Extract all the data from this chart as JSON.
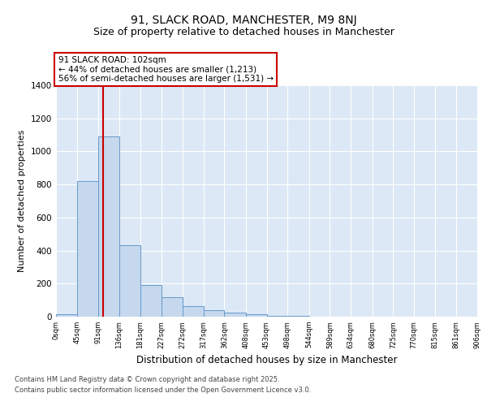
{
  "title": "91, SLACK ROAD, MANCHESTER, M9 8NJ",
  "subtitle": "Size of property relative to detached houses in Manchester",
  "xlabel": "Distribution of detached houses by size in Manchester",
  "ylabel": "Number of detached properties",
  "bar_values": [
    15,
    820,
    1090,
    430,
    190,
    120,
    65,
    40,
    25,
    15,
    5,
    3,
    2,
    1,
    0,
    0,
    0,
    0,
    0,
    0
  ],
  "bin_edges": [
    0,
    45,
    91,
    136,
    181,
    227,
    272,
    317,
    362,
    408,
    453,
    498,
    544,
    589,
    634,
    680,
    725,
    770,
    815,
    861,
    906
  ],
  "tick_labels": [
    "0sqm",
    "45sqm",
    "91sqm",
    "136sqm",
    "181sqm",
    "227sqm",
    "272sqm",
    "317sqm",
    "362sqm",
    "408sqm",
    "453sqm",
    "498sqm",
    "544sqm",
    "589sqm",
    "634sqm",
    "680sqm",
    "725sqm",
    "770sqm",
    "815sqm",
    "861sqm",
    "906sqm"
  ],
  "property_size": 102,
  "property_line_color": "#cc0000",
  "bar_color": "#c5d8ed",
  "bar_edge_color": "#6699cc",
  "annotation_text": "91 SLACK ROAD: 102sqm\n← 44% of detached houses are smaller (1,213)\n56% of semi-detached houses are larger (1,531) →",
  "annotation_box_color": "#ffffff",
  "annotation_box_edge_color": "#cc0000",
  "ylim": [
    0,
    1400
  ],
  "yticks": [
    0,
    200,
    400,
    600,
    800,
    1000,
    1200,
    1400
  ],
  "background_color": "#dce8f5",
  "grid_color": "#ffffff",
  "footer_line1": "Contains HM Land Registry data © Crown copyright and database right 2025.",
  "footer_line2": "Contains public sector information licensed under the Open Government Licence v3.0.",
  "title_fontsize": 10,
  "subtitle_fontsize": 9,
  "xlabel_fontsize": 8.5,
  "ylabel_fontsize": 8
}
